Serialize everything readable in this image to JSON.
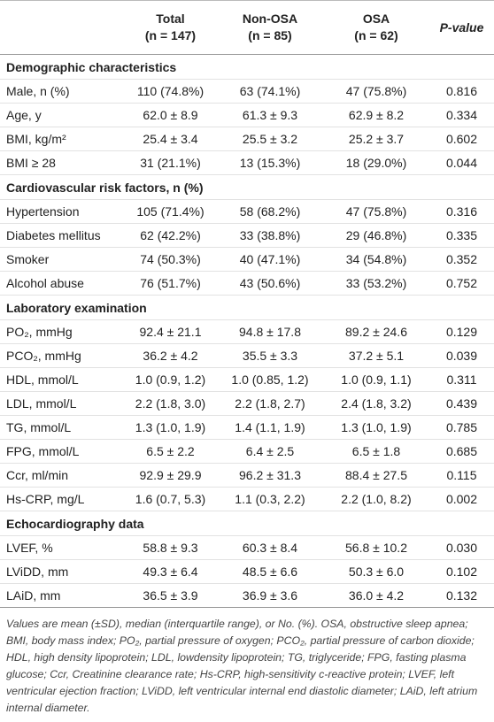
{
  "table": {
    "header": [
      {
        "label": "Total",
        "n": "(n = 147)"
      },
      {
        "label": "Non-OSA",
        "n": "(n = 85)"
      },
      {
        "label": "OSA",
        "n": "(n = 62)"
      },
      {
        "label": "P-value"
      }
    ],
    "sections": [
      {
        "title": "Demographic characteristics",
        "rows": [
          [
            "Male, n (%)",
            "110 (74.8%)",
            "63 (74.1%)",
            "47 (75.8%)",
            "0.816"
          ],
          [
            "Age, y",
            "62.0 ± 8.9",
            "61.3 ± 9.3",
            "62.9 ± 8.2",
            "0.334"
          ],
          [
            "BMI, kg/m²",
            "25.4 ± 3.4",
            "25.5 ± 3.2",
            "25.2 ± 3.7",
            "0.602"
          ],
          [
            "BMI ≥ 28",
            "31 (21.1%)",
            "13 (15.3%)",
            "18 (29.0%)",
            "0.044"
          ]
        ]
      },
      {
        "title": "Cardiovascular risk factors, n (%)",
        "rows": [
          [
            "Hypertension",
            "105 (71.4%)",
            "58 (68.2%)",
            "47 (75.8%)",
            "0.316"
          ],
          [
            "Diabetes mellitus",
            "62 (42.2%)",
            "33 (38.8%)",
            "29 (46.8%)",
            "0.335"
          ],
          [
            "Smoker",
            "74 (50.3%)",
            "40 (47.1%)",
            "34 (54.8%)",
            "0.352"
          ],
          [
            "Alcohol abuse",
            "76 (51.7%)",
            "43 (50.6%)",
            "33 (53.2%)",
            "0.752"
          ]
        ]
      },
      {
        "title": "Laboratory examination",
        "rows": [
          [
            "PO₂, mmHg",
            "92.4 ± 21.1",
            "94.8 ± 17.8",
            "89.2 ± 24.6",
            "0.129"
          ],
          [
            "PCO₂, mmHg",
            "36.2 ± 4.2",
            "35.5 ± 3.3",
            "37.2 ± 5.1",
            "0.039"
          ],
          [
            "HDL, mmol/L",
            "1.0 (0.9, 1.2)",
            "1.0 (0.85, 1.2)",
            "1.0 (0.9, 1.1)",
            "0.311"
          ],
          [
            "LDL, mmol/L",
            "2.2 (1.8, 3.0)",
            "2.2 (1.8, 2.7)",
            "2.4 (1.8, 3.2)",
            "0.439"
          ],
          [
            "TG, mmol/L",
            "1.3 (1.0, 1.9)",
            "1.4 (1.1, 1.9)",
            "1.3 (1.0, 1.9)",
            "0.785"
          ],
          [
            "FPG, mmol/L",
            "6.5 ± 2.2",
            "6.4 ± 2.5",
            "6.5 ± 1.8",
            "0.685"
          ],
          [
            "Ccr, ml/min",
            "92.9 ± 29.9",
            "96.2 ± 31.3",
            "88.4 ± 27.5",
            "0.115"
          ],
          [
            "Hs-CRP, mg/L",
            "1.6 (0.7, 5.3)",
            "1.1 (0.3, 2.2)",
            "2.2 (1.0, 8.2)",
            "0.002"
          ]
        ]
      },
      {
        "title": "Echocardiography data",
        "rows": [
          [
            "LVEF, %",
            "58.8 ± 9.3",
            "60.3 ± 8.4",
            "56.8 ± 10.2",
            "0.030"
          ],
          [
            "LViDD, mm",
            "49.3 ± 6.4",
            "48.5 ± 6.6",
            "50.3 ± 6.0",
            "0.102"
          ],
          [
            "LAiD, mm",
            "36.5 ± 3.9",
            "36.9 ± 3.6",
            "36.0 ± 4.2",
            "0.132"
          ]
        ]
      }
    ],
    "footnote": "Values are mean (±SD), median (interquartile range), or No. (%). OSA, obstructive sleep apnea; BMI, body mass index; PO₂, partial pressure of oxygen; PCO₂, partial pressure of carbon dioxide; HDL, high density lipoprotein; LDL, lowdensity lipoprotein; TG, triglyceride; FPG, fasting plasma glucose; Ccr, Creatinine clearance rate; Hs-CRP, high-sensitivity c-reactive protein; LVEF, left ventricular ejection fraction; LViDD, left ventricular internal end diastolic diameter; LAiD, left atrium internal diameter."
  }
}
